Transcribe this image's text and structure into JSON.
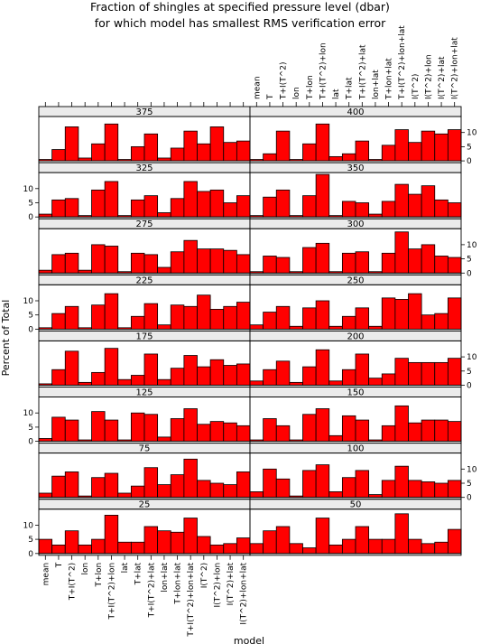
{
  "chart_data": {
    "type": "bar",
    "title": "Fraction of shingles at specified pressure level (dbar)",
    "subtitle": "for which model has smallest RMS verification error",
    "xlabel": "model",
    "ylabel": "Percent of Total",
    "categories": [
      "mean",
      "T",
      "T+I(T^2)",
      "lon",
      "T+lon",
      "T+I(T^2)+lon",
      "lat",
      "T+lat",
      "T+I(T^2)+lat",
      "lon+lat",
      "T+lon+lat",
      "T+I(T^2)+lon+lat",
      "I(T^2)",
      "I(T^2)+lon",
      "I(T^2)+lat",
      "I(T^2)+lon+lat"
    ],
    "ylim": [
      0,
      15
    ],
    "yticks": [
      0,
      5,
      10
    ],
    "layout": "2 columns x 8 rows",
    "panels": [
      {
        "label": "25",
        "values": [
          5.0,
          3.0,
          8.0,
          3.0,
          5.0,
          13.5,
          4.0,
          4.0,
          9.5,
          8.0,
          7.5,
          12.5,
          6.0,
          3.0,
          3.5,
          5.5
        ]
      },
      {
        "label": "50",
        "values": [
          3.5,
          8.0,
          9.5,
          3.5,
          2.0,
          12.5,
          3.0,
          5.0,
          9.5,
          5.0,
          5.0,
          14.0,
          5.0,
          3.5,
          4.0,
          8.5
        ]
      },
      {
        "label": "75",
        "values": [
          1.5,
          7.5,
          9.0,
          0.5,
          7.0,
          8.5,
          1.5,
          4.0,
          10.5,
          4.5,
          8.0,
          13.5,
          6.0,
          5.0,
          4.5,
          9.0
        ]
      },
      {
        "label": "100",
        "values": [
          2.0,
          10.0,
          6.5,
          0.5,
          9.5,
          11.5,
          2.0,
          7.0,
          9.5,
          1.0,
          6.0,
          11.0,
          6.0,
          5.5,
          5.0,
          6.0
        ]
      },
      {
        "label": "125",
        "values": [
          1.0,
          8.5,
          7.5,
          0.5,
          10.5,
          7.5,
          0.5,
          10.0,
          9.5,
          1.5,
          8.0,
          11.5,
          6.0,
          7.0,
          6.5,
          5.5
        ]
      },
      {
        "label": "150",
        "values": [
          0.5,
          8.0,
          5.5,
          0.5,
          9.5,
          11.5,
          2.0,
          9.0,
          7.5,
          0.5,
          5.5,
          12.5,
          6.5,
          7.5,
          7.5,
          7.0
        ]
      },
      {
        "label": "175",
        "values": [
          0.5,
          5.5,
          12.0,
          1.0,
          4.5,
          13.0,
          2.0,
          3.5,
          11.0,
          2.0,
          6.0,
          10.5,
          6.5,
          9.0,
          7.0,
          7.5
        ]
      },
      {
        "label": "200",
        "values": [
          1.5,
          5.5,
          8.5,
          1.0,
          6.5,
          12.5,
          1.5,
          5.5,
          11.0,
          2.5,
          4.0,
          9.5,
          8.0,
          8.0,
          8.0,
          9.5
        ]
      },
      {
        "label": "225",
        "values": [
          0.5,
          5.5,
          8.0,
          0.5,
          8.5,
          12.5,
          0.5,
          4.5,
          9.0,
          1.5,
          8.5,
          8.0,
          12.0,
          7.0,
          8.0,
          9.5
        ]
      },
      {
        "label": "250",
        "values": [
          1.5,
          6.0,
          8.0,
          1.0,
          7.5,
          10.0,
          1.0,
          4.5,
          7.5,
          1.0,
          11.0,
          10.5,
          12.5,
          5.0,
          5.5,
          11.0
        ]
      },
      {
        "label": "275",
        "values": [
          1.0,
          6.5,
          7.0,
          1.0,
          10.0,
          9.5,
          0.5,
          7.0,
          6.5,
          2.0,
          7.5,
          11.5,
          8.5,
          8.5,
          8.0,
          6.5
        ]
      },
      {
        "label": "300",
        "values": [
          0.5,
          6.0,
          5.5,
          0.5,
          9.0,
          10.5,
          0.5,
          7.0,
          7.5,
          0.5,
          7.0,
          14.5,
          8.5,
          10.0,
          6.0,
          5.5
        ]
      },
      {
        "label": "325",
        "values": [
          1.0,
          6.0,
          6.5,
          0.5,
          9.5,
          12.5,
          0.5,
          6.0,
          7.5,
          1.5,
          6.5,
          12.5,
          9.0,
          9.5,
          5.0,
          7.5
        ]
      },
      {
        "label": "350",
        "values": [
          0.5,
          7.0,
          9.5,
          0.5,
          7.5,
          15.0,
          0.5,
          5.5,
          5.0,
          1.0,
          5.5,
          11.5,
          8.0,
          11.0,
          6.0,
          5.0
        ]
      },
      {
        "label": "375",
        "values": [
          0.5,
          4.0,
          12.0,
          1.0,
          6.0,
          13.0,
          0.5,
          5.0,
          9.5,
          1.0,
          4.5,
          10.5,
          6.0,
          12.0,
          6.5,
          7.0
        ]
      },
      {
        "label": "400",
        "values": [
          0.5,
          2.5,
          10.5,
          0.5,
          6.0,
          13.0,
          1.5,
          2.5,
          7.0,
          0.5,
          5.5,
          11.0,
          6.5,
          10.5,
          9.5,
          11.0
        ]
      }
    ]
  }
}
